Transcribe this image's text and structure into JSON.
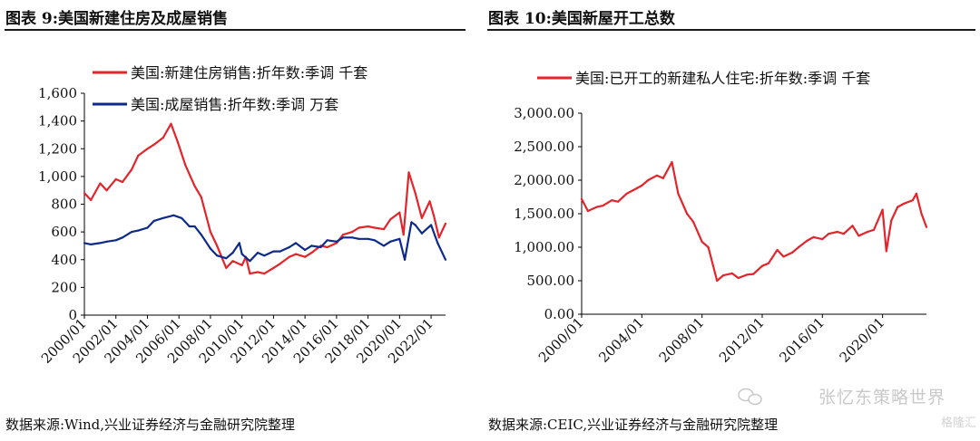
{
  "panels": [
    {
      "title": "图表 9:美国新建住房及成屋销售",
      "source": "数据来源:Wind,兴业证券经济与金融研究院整理"
    },
    {
      "title": "图表 10:美国新屋开工总数",
      "source": "数据来源:CEIC,兴业证券经济与金融研究院整理"
    }
  ],
  "watermark": "张忆东策略世界",
  "watermark2": "格隆汇",
  "colors": {
    "red": "#e3242b",
    "navy": "#0d2a8a",
    "wechat_icon": "#c9c9c9"
  },
  "chart_data": [
    {
      "type": "line",
      "ylim": [
        0,
        1600
      ],
      "yticks": [
        "0",
        "200",
        "400",
        "600",
        "800",
        "1,000",
        "1,200",
        "1,400",
        "1,600"
      ],
      "xticks": [
        "2000/01",
        "2002/01",
        "2004/01",
        "2006/01",
        "2008/01",
        "2010/01",
        "2012/01",
        "2014/01",
        "2016/01",
        "2018/01",
        "2020/01",
        "2022/01"
      ],
      "xrange": [
        "2000-01",
        "2022-12"
      ],
      "legend_position": "top-left",
      "series": [
        {
          "name": "美国:新建住房销售:折年数:季调 千套",
          "color": "#e3242b",
          "points": [
            [
              "2000-01",
              880
            ],
            [
              "2000-06",
              830
            ],
            [
              "2001-01",
              950
            ],
            [
              "2001-06",
              900
            ],
            [
              "2002-01",
              980
            ],
            [
              "2002-06",
              960
            ],
            [
              "2003-01",
              1050
            ],
            [
              "2003-06",
              1150
            ],
            [
              "2004-01",
              1200
            ],
            [
              "2004-06",
              1230
            ],
            [
              "2005-01",
              1280
            ],
            [
              "2005-07",
              1380
            ],
            [
              "2005-12",
              1250
            ],
            [
              "2006-06",
              1080
            ],
            [
              "2007-01",
              930
            ],
            [
              "2007-06",
              850
            ],
            [
              "2008-01",
              600
            ],
            [
              "2008-06",
              500
            ],
            [
              "2009-01",
              340
            ],
            [
              "2009-06",
              390
            ],
            [
              "2010-01",
              360
            ],
            [
              "2010-04",
              420
            ],
            [
              "2010-07",
              300
            ],
            [
              "2011-01",
              310
            ],
            [
              "2011-06",
              300
            ],
            [
              "2012-01",
              340
            ],
            [
              "2012-06",
              370
            ],
            [
              "2013-01",
              420
            ],
            [
              "2013-06",
              440
            ],
            [
              "2014-01",
              420
            ],
            [
              "2014-06",
              450
            ],
            [
              "2015-01",
              500
            ],
            [
              "2015-06",
              490
            ],
            [
              "2016-01",
              520
            ],
            [
              "2016-06",
              580
            ],
            [
              "2017-01",
              600
            ],
            [
              "2017-06",
              630
            ],
            [
              "2018-01",
              640
            ],
            [
              "2018-06",
              630
            ],
            [
              "2019-01",
              620
            ],
            [
              "2019-06",
              690
            ],
            [
              "2020-01",
              740
            ],
            [
              "2020-04",
              580
            ],
            [
              "2020-08",
              1030
            ],
            [
              "2021-01",
              880
            ],
            [
              "2021-06",
              700
            ],
            [
              "2021-12",
              820
            ],
            [
              "2022-03",
              720
            ],
            [
              "2022-07",
              560
            ],
            [
              "2022-12",
              660
            ]
          ]
        },
        {
          "name": "美国:成屋销售:折年数:季调 万套",
          "color": "#0d2a8a",
          "points": [
            [
              "2000-01",
              520
            ],
            [
              "2000-06",
              510
            ],
            [
              "2001-01",
              520
            ],
            [
              "2001-06",
              530
            ],
            [
              "2002-01",
              540
            ],
            [
              "2002-06",
              560
            ],
            [
              "2003-01",
              600
            ],
            [
              "2003-06",
              610
            ],
            [
              "2004-01",
              630
            ],
            [
              "2004-06",
              680
            ],
            [
              "2005-01",
              700
            ],
            [
              "2005-09",
              720
            ],
            [
              "2006-03",
              700
            ],
            [
              "2006-09",
              640
            ],
            [
              "2007-01",
              640
            ],
            [
              "2007-06",
              580
            ],
            [
              "2008-01",
              480
            ],
            [
              "2008-06",
              430
            ],
            [
              "2009-01",
              410
            ],
            [
              "2009-06",
              450
            ],
            [
              "2009-11",
              520
            ],
            [
              "2010-01",
              440
            ],
            [
              "2010-07",
              390
            ],
            [
              "2011-01",
              450
            ],
            [
              "2011-06",
              430
            ],
            [
              "2012-01",
              460
            ],
            [
              "2012-06",
              460
            ],
            [
              "2013-01",
              490
            ],
            [
              "2013-06",
              520
            ],
            [
              "2014-01",
              470
            ],
            [
              "2014-06",
              500
            ],
            [
              "2015-01",
              490
            ],
            [
              "2015-06",
              540
            ],
            [
              "2016-01",
              530
            ],
            [
              "2016-06",
              560
            ],
            [
              "2017-01",
              560
            ],
            [
              "2017-06",
              550
            ],
            [
              "2018-01",
              550
            ],
            [
              "2018-06",
              540
            ],
            [
              "2019-01",
              500
            ],
            [
              "2019-06",
              530
            ],
            [
              "2020-01",
              550
            ],
            [
              "2020-05",
              400
            ],
            [
              "2020-10",
              670
            ],
            [
              "2021-01",
              650
            ],
            [
              "2021-06",
              590
            ],
            [
              "2022-01",
              650
            ],
            [
              "2022-06",
              520
            ],
            [
              "2022-12",
              400
            ]
          ]
        }
      ]
    },
    {
      "type": "line",
      "ylim": [
        0,
        3000
      ],
      "yticks": [
        "0.00",
        "500.00",
        "1,000.00",
        "1,500.00",
        "2,000.00",
        "2,500.00",
        "3,000.00"
      ],
      "xticks": [
        "2000/01",
        "2004/01",
        "2008/01",
        "2012/01",
        "2016/01",
        "2020/01"
      ],
      "xrange": [
        "2000-01",
        "2022-12"
      ],
      "legend_position": "top-left",
      "series": [
        {
          "name": "美国:已开工的新建私人住宅:折年数:季调 千套",
          "color": "#e3242b",
          "points": [
            [
              "2000-01",
              1720
            ],
            [
              "2000-06",
              1540
            ],
            [
              "2001-01",
              1600
            ],
            [
              "2001-06",
              1620
            ],
            [
              "2002-01",
              1700
            ],
            [
              "2002-06",
              1680
            ],
            [
              "2003-01",
              1800
            ],
            [
              "2003-06",
              1850
            ],
            [
              "2004-01",
              1920
            ],
            [
              "2004-06",
              2000
            ],
            [
              "2005-01",
              2070
            ],
            [
              "2005-06",
              2030
            ],
            [
              "2006-01",
              2270
            ],
            [
              "2006-06",
              1800
            ],
            [
              "2007-01",
              1500
            ],
            [
              "2007-06",
              1380
            ],
            [
              "2008-01",
              1080
            ],
            [
              "2008-06",
              1000
            ],
            [
              "2009-01",
              500
            ],
            [
              "2009-06",
              580
            ],
            [
              "2010-01",
              610
            ],
            [
              "2010-06",
              540
            ],
            [
              "2011-01",
              590
            ],
            [
              "2011-06",
              600
            ],
            [
              "2012-01",
              720
            ],
            [
              "2012-06",
              760
            ],
            [
              "2013-01",
              960
            ],
            [
              "2013-06",
              860
            ],
            [
              "2014-01",
              920
            ],
            [
              "2014-06",
              1000
            ],
            [
              "2015-01",
              1100
            ],
            [
              "2015-06",
              1150
            ],
            [
              "2016-01",
              1120
            ],
            [
              "2016-06",
              1200
            ],
            [
              "2017-01",
              1230
            ],
            [
              "2017-06",
              1200
            ],
            [
              "2018-01",
              1320
            ],
            [
              "2018-06",
              1170
            ],
            [
              "2019-01",
              1230
            ],
            [
              "2019-06",
              1260
            ],
            [
              "2020-01",
              1560
            ],
            [
              "2020-04",
              940
            ],
            [
              "2020-08",
              1400
            ],
            [
              "2021-01",
              1600
            ],
            [
              "2021-06",
              1650
            ],
            [
              "2022-01",
              1700
            ],
            [
              "2022-04",
              1800
            ],
            [
              "2022-08",
              1500
            ],
            [
              "2022-12",
              1300
            ]
          ]
        }
      ]
    }
  ]
}
